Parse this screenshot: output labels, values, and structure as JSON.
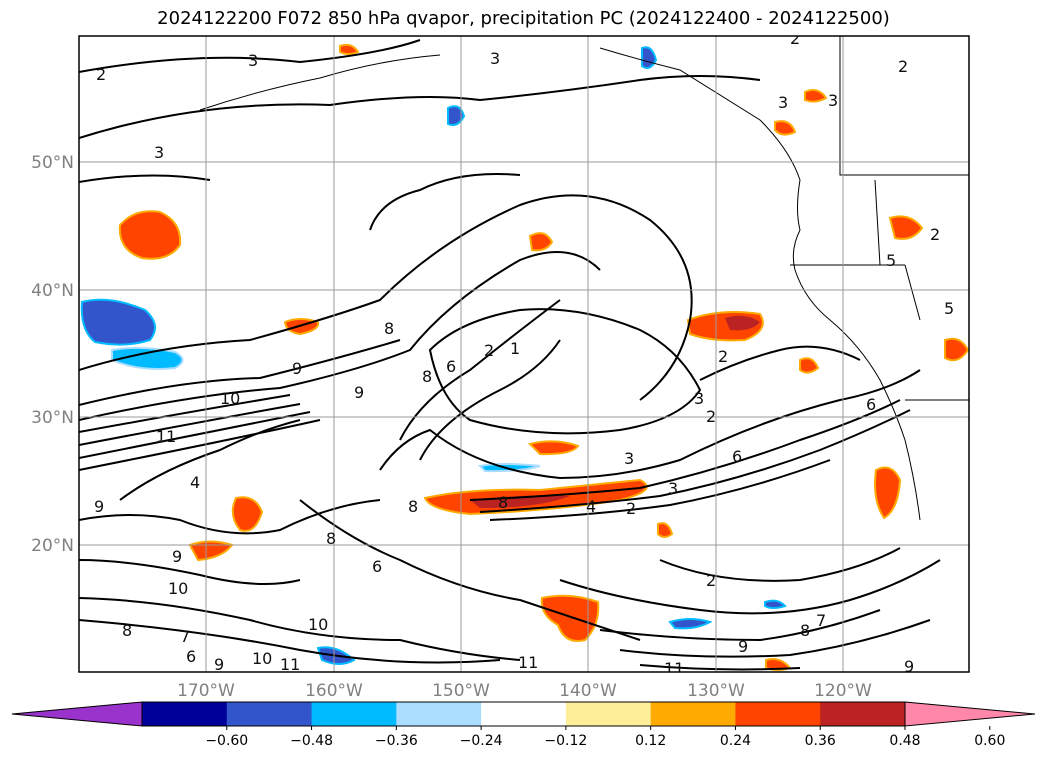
{
  "title": "2024122200 F072 850 hPa qvapor, precipitation PC (2024122400 - 2024122500)",
  "map": {
    "lat_labels": [
      "50°N",
      "40°N",
      "30°N",
      "20°N"
    ],
    "lon_labels": [
      "170°W",
      "160°W",
      "150°W",
      "140°W",
      "130°W",
      "120°W"
    ],
    "contour_labels": [
      "2",
      "3",
      "3",
      "2",
      "3",
      "3",
      "3",
      "2",
      "8",
      "9",
      "10",
      "11",
      "9",
      "8",
      "6",
      "2",
      "1",
      "2",
      "3",
      "2",
      "6",
      "6",
      "3",
      "2",
      "4",
      "3",
      "8",
      "9",
      "9",
      "4",
      "8",
      "8",
      "6",
      "10",
      "7",
      "6",
      "9",
      "10",
      "11",
      "8",
      "10",
      "11",
      "11",
      "9",
      "8",
      "7",
      "2",
      "9",
      "5",
      "2",
      "5"
    ]
  },
  "colorbar": {
    "colors": [
      "#9933cc",
      "#000099",
      "#3355cc",
      "#00bbff",
      "#aaddff",
      "#ffffff",
      "#ffee99",
      "#ffaa00",
      "#ff4400",
      "#bb2222",
      "#ff88aa"
    ],
    "tick_labels": [
      "−0.60",
      "−0.48",
      "−0.36",
      "−0.24",
      "−0.12",
      "0.12",
      "0.24",
      "0.36",
      "0.48",
      "0.60"
    ]
  }
}
